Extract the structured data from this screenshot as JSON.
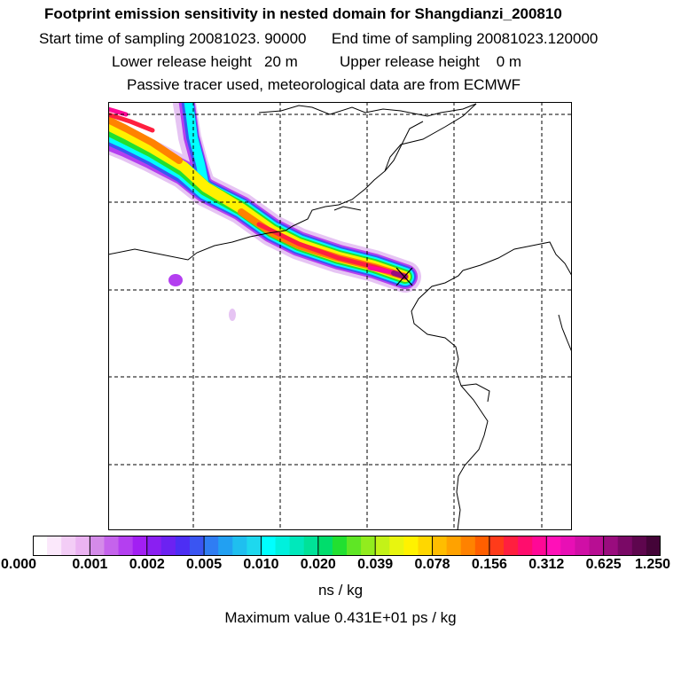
{
  "header": {
    "title": "Footprint emission sensitivity in nested domain for Shangdianzi_200810",
    "sampling_line": "Start time of sampling 20081023. 90000      End time of sampling 20081023.120000",
    "release_line": "Lower release height   20 m          Upper release height    0 m",
    "tracer_line": "Passive tracer used, meteorological data are from ECMWF"
  },
  "map": {
    "station_marker": "x-marker-icon",
    "background_color": "#ffffff",
    "coastline_color": "#000000",
    "grid_color": "#000000"
  },
  "colorbar": {
    "tick_labels": [
      "0.000",
      "0.001",
      "0.002",
      "0.005",
      "0.010",
      "0.020",
      "0.039",
      "0.078",
      "0.156",
      "0.312",
      "0.625",
      "1.250"
    ],
    "colors": [
      "#ffffff",
      "#fbe8fb",
      "#f3cdf6",
      "#ebb3f2",
      "#d48be9",
      "#c563ec",
      "#b43ff0",
      "#a21ff3",
      "#8a1ff2",
      "#6c22f2",
      "#4d2ef4",
      "#3a55f2",
      "#2f7df3",
      "#22a0f2",
      "#1fbfef",
      "#1ed8ee",
      "#00ffff",
      "#00f0dd",
      "#00e8bb",
      "#00e298",
      "#00dd6c",
      "#22e030",
      "#5fe625",
      "#92ec1e",
      "#c3f218",
      "#e8f50f",
      "#fff200",
      "#ffd700",
      "#ffbd00",
      "#ffa200",
      "#ff8200",
      "#ff5f00",
      "#ff3b1a",
      "#ff1f3f",
      "#ff0d6d",
      "#ff0896",
      "#ff10b8",
      "#e80fb5",
      "#d00fa6",
      "#b80e93",
      "#9a0c7e",
      "#7a0966",
      "#5e064e",
      "#440438"
    ],
    "units": "ns / kg",
    "max_value_text": "Maximum value  0.431E+01 ps / kg"
  }
}
